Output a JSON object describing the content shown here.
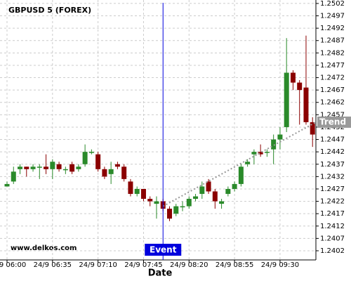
{
  "chart_data": {
    "type": "candlestick",
    "title": "GBPUSD 5 (FOREX)",
    "watermark": "www.delkos.com",
    "x_label": "Date",
    "categories": [
      "24/9 06:00",
      null,
      null,
      null,
      null,
      null,
      null,
      "24/9 06:35",
      null,
      null,
      null,
      null,
      null,
      null,
      "24/9 07:10",
      null,
      null,
      null,
      null,
      null,
      null,
      "24/9 07:45",
      null,
      null,
      null,
      null,
      null,
      null,
      "24/9 08:20",
      null,
      null,
      null,
      null,
      null,
      null,
      "24/9 08:55",
      null,
      null,
      null,
      null,
      null,
      null,
      "24/9 09:30",
      null,
      null,
      null,
      null,
      null
    ],
    "open": [
      1.2428,
      1.243,
      1.2435,
      1.2436,
      1.2435,
      1.2436,
      1.2436,
      1.2435,
      1.2437,
      1.2435,
      1.2437,
      1.2435,
      1.2437,
      1.2442,
      1.2441,
      1.2435,
      1.2433,
      1.2437,
      1.2436,
      1.243,
      1.2425,
      1.2427,
      1.2423,
      1.2421,
      1.2422,
      1.2419,
      1.2417,
      1.242,
      1.242,
      1.2423,
      1.2425,
      1.243,
      1.2426,
      1.2421,
      1.2425,
      1.2427,
      1.2429,
      1.2437,
      1.2441,
      1.2442,
      1.2442,
      1.2443,
      1.2447,
      1.2452,
      1.2474,
      1.247,
      1.2468,
      1.2454
    ],
    "high": [
      1.243,
      1.2436,
      1.2437,
      1.2436,
      1.2437,
      1.2437,
      1.2441,
      1.2439,
      1.2438,
      1.2436,
      1.2438,
      1.2437,
      1.2445,
      1.2443,
      1.2442,
      1.2436,
      1.2438,
      1.2438,
      1.2437,
      1.2431,
      1.2428,
      1.2427,
      1.2424,
      1.2424,
      1.2423,
      1.242,
      1.2421,
      1.2422,
      1.2424,
      1.2425,
      1.243,
      1.2431,
      1.2427,
      1.2423,
      1.2428,
      1.243,
      1.2437,
      1.2439,
      1.2443,
      1.2445,
      1.2443,
      1.2449,
      1.2452,
      1.2488,
      1.2475,
      1.2471,
      1.2489,
      1.2456
    ],
    "low": [
      1.2428,
      1.2429,
      1.2433,
      1.2432,
      1.2434,
      1.2431,
      1.2433,
      1.2431,
      1.2434,
      1.2433,
      1.2433,
      1.2434,
      1.2436,
      1.2441,
      1.2434,
      1.2431,
      1.2429,
      1.2435,
      1.243,
      1.2424,
      1.2424,
      1.2422,
      1.242,
      1.2415,
      1.2418,
      1.2414,
      1.2416,
      1.2418,
      1.2419,
      1.2422,
      1.2423,
      1.2425,
      1.2419,
      1.2419,
      1.2424,
      1.2426,
      1.2428,
      1.2436,
      1.2437,
      1.244,
      1.244,
      1.2437,
      1.2443,
      1.245,
      1.2467,
      1.2453,
      1.2453,
      1.2444
    ],
    "close": [
      1.2429,
      1.2434,
      1.2436,
      1.2435,
      1.2436,
      1.2436,
      1.2435,
      1.2438,
      1.2435,
      1.2435,
      1.2434,
      1.2436,
      1.2442,
      1.2442,
      1.2435,
      1.2432,
      1.2435,
      1.2436,
      1.2431,
      1.2425,
      1.2427,
      1.2423,
      1.2422,
      1.2422,
      1.2419,
      1.2415,
      1.242,
      1.242,
      1.2423,
      1.2424,
      1.2428,
      1.2426,
      1.2422,
      1.2422,
      1.2427,
      1.2429,
      1.2436,
      1.2438,
      1.2442,
      1.2441,
      1.2442,
      1.2447,
      1.2449,
      1.2474,
      1.247,
      1.2467,
      1.2454,
      1.2449
    ],
    "up_color": "#2a8a2a",
    "down_color": "#8b0000",
    "ylim": [
      1.23983,
      1.25034
    ],
    "yticks": [
      1.2402,
      1.2407,
      1.2412,
      1.2417,
      1.2422,
      1.2427,
      1.2432,
      1.2437,
      1.2442,
      1.2447,
      1.2452,
      1.2457,
      1.2462,
      1.2467,
      1.2472,
      1.2477,
      1.2482,
      1.2487,
      1.2492,
      1.2497,
      1.2502
    ],
    "grid": true,
    "event": {
      "label": "Event",
      "index": 24,
      "color": "#0000dd"
    },
    "trend": {
      "label": "Trend",
      "from": 1.242,
      "to": 1.2454,
      "color": "#999999"
    }
  }
}
